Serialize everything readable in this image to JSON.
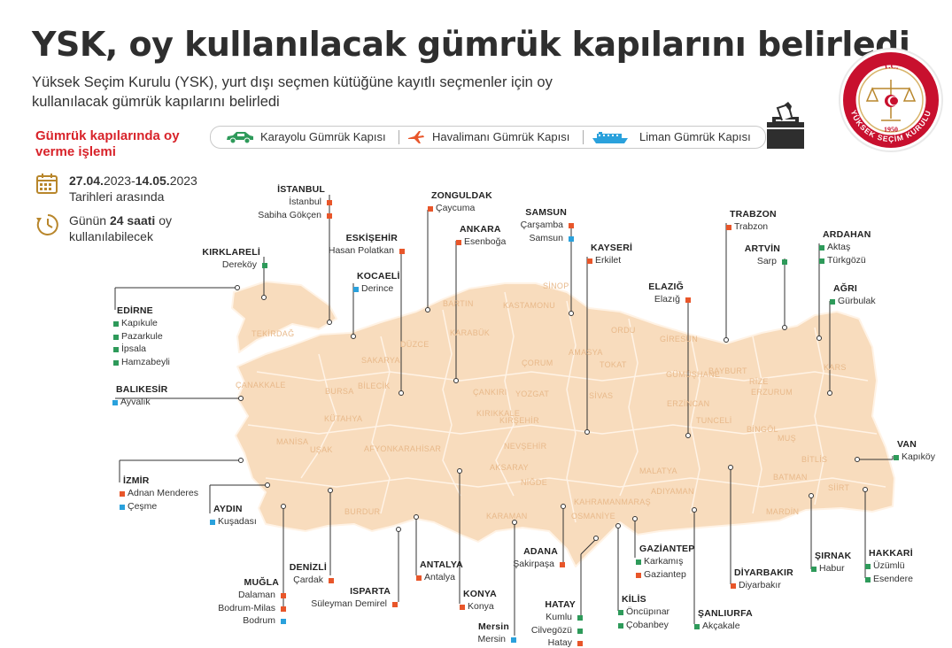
{
  "title": "YSK, oy kullanılacak gümrük kapılarını belirledi",
  "subtitle": "Yüksek Seçim Kurulu (YSK), yurt dışı seçmen kütüğüne kayıtlı seçmenler için oy kullanılacak gümrük kapılarını belirledi",
  "process_title": "Gümrük kapılarında oy verme işlemi",
  "dates": {
    "start": "27.04.",
    "start_year": "2023-",
    "end": "14.05.",
    "end_year": "2023",
    "suffix": "Tarihleri arasında"
  },
  "hours": {
    "prefix": "Günün ",
    "bold": "24 saati",
    "suffix": " oy kullanılabilecek"
  },
  "legend": {
    "land": "Karayolu Gümrük Kapısı",
    "air": "Havalimanı Gümrük Kapısı",
    "sea": "Liman Gümrük Kapısı"
  },
  "colors": {
    "land": "#2e9a5a",
    "air": "#e8562a",
    "sea": "#2aa1dc",
    "map": "#f8dcbd",
    "map_line": "#fff3e6",
    "accent": "#d8232a",
    "seal": "#c8102e"
  },
  "seal": {
    "top": "T.C.",
    "bottom": "YÜKSEK SEÇİM KURULU",
    "year": "1950"
  },
  "provinces_bg": [
    "TEKİRDAĞ",
    "KASTAMONU",
    "SİNOP",
    "BARTIN",
    "DÜZCE",
    "KARABÜK",
    "SAKARYA",
    "BURSA",
    "BİLECİK",
    "ÇANKIRI",
    "ÇORUM",
    "AMASYA",
    "TOKAT",
    "ORDU",
    "GİRESUN",
    "RİZE",
    "BAYBURT",
    "GÜMÜŞHANE",
    "ERZURUM",
    "KARS",
    "ERZİNCAN",
    "TUNCELİ",
    "BİNGÖL",
    "MUŞ",
    "BİTLİS",
    "SİVAS",
    "YOZGAT",
    "KIRIKKALE",
    "KIRŞEHİR",
    "NEVŞEHİR",
    "AKSARAY",
    "NİĞDE",
    "KAHRAMANMARAŞ",
    "MALATYA",
    "ADIYAMAN",
    "BATMAN",
    "SİİRT",
    "MARDİN",
    "OSMANİYE",
    "KARAMAN",
    "KÜTAHYA",
    "MANİSA",
    "UŞAK",
    "AFYONKARAHİSAR",
    "BURDUR",
    "ÇANAKKALE"
  ],
  "cities": [
    {
      "name": "İSTANBUL",
      "gates": [
        {
          "label": "İstanbul",
          "type": "air"
        },
        {
          "label": "Sabiha Gökçen",
          "type": "air"
        }
      ]
    },
    {
      "name": "KIRKLARELİ",
      "gates": [
        {
          "label": "Dereköy",
          "type": "land"
        }
      ]
    },
    {
      "name": "EDİRNE",
      "gates": [
        {
          "label": "Kapıkule",
          "type": "land"
        },
        {
          "label": "Pazarkule",
          "type": "land"
        },
        {
          "label": "İpsala",
          "type": "land"
        },
        {
          "label": "Hamzabeyli",
          "type": "land"
        }
      ]
    },
    {
      "name": "BALIKESİR",
      "gates": [
        {
          "label": "Ayvalık",
          "type": "sea"
        }
      ]
    },
    {
      "name": "İZMİR",
      "gates": [
        {
          "label": "Adnan Menderes",
          "type": "air"
        },
        {
          "label": "Çeşme",
          "type": "sea"
        }
      ]
    },
    {
      "name": "AYDIN",
      "gates": [
        {
          "label": "Kuşadası",
          "type": "sea"
        }
      ]
    },
    {
      "name": "MUĞLA",
      "gates": [
        {
          "label": "Dalaman",
          "type": "air"
        },
        {
          "label": "Bodrum-Milas",
          "type": "air"
        },
        {
          "label": "Bodrum",
          "type": "sea"
        }
      ]
    },
    {
      "name": "DENİZLİ",
      "gates": [
        {
          "label": "Çardak",
          "type": "air"
        }
      ]
    },
    {
      "name": "ISPARTA",
      "gates": [
        {
          "label": "Süleyman Demirel",
          "type": "air"
        }
      ]
    },
    {
      "name": "ESKİŞEHİR",
      "gates": [
        {
          "label": "Hasan Polatkan",
          "type": "air"
        }
      ]
    },
    {
      "name": "KOCAELİ",
      "gates": [
        {
          "label": "Derince",
          "type": "sea"
        }
      ]
    },
    {
      "name": "ZONGULDAK",
      "gates": [
        {
          "label": "Çaycuma",
          "type": "air"
        }
      ]
    },
    {
      "name": "ANKARA",
      "gates": [
        {
          "label": "Esenboğa",
          "type": "air"
        }
      ]
    },
    {
      "name": "ANTALYA",
      "gates": [
        {
          "label": "Antalya",
          "type": "air"
        }
      ]
    },
    {
      "name": "KONYA",
      "gates": [
        {
          "label": "Konya",
          "type": "air"
        }
      ]
    },
    {
      "name": "Mersin",
      "gates": [
        {
          "label": "Mersin",
          "type": "sea"
        }
      ]
    },
    {
      "name": "SAMSUN",
      "gates": [
        {
          "label": "Çarşamba",
          "type": "air"
        },
        {
          "label": "Samsun",
          "type": "sea"
        }
      ]
    },
    {
      "name": "KAYSERİ",
      "gates": [
        {
          "label": "Erkilet",
          "type": "air"
        }
      ]
    },
    {
      "name": "ADANA",
      "gates": [
        {
          "label": "Şakirpaşa",
          "type": "air"
        }
      ]
    },
    {
      "name": "HATAY",
      "gates": [
        {
          "label": "Kumlu",
          "type": "land"
        },
        {
          "label": "Cilvegözü",
          "type": "land"
        },
        {
          "label": "Hatay",
          "type": "air"
        }
      ]
    },
    {
      "name": "GAZİANTEP",
      "gates": [
        {
          "label": "Karkamış",
          "type": "land"
        },
        {
          "label": "Gaziantep",
          "type": "air"
        }
      ]
    },
    {
      "name": "KİLİS",
      "gates": [
        {
          "label": "Öncüpınar",
          "type": "land"
        },
        {
          "label": "Çobanbey",
          "type": "land"
        }
      ]
    },
    {
      "name": "ELAZIĞ",
      "gates": [
        {
          "label": "Elazığ",
          "type": "air"
        }
      ]
    },
    {
      "name": "TRABZON",
      "gates": [
        {
          "label": "Trabzon",
          "type": "air"
        }
      ]
    },
    {
      "name": "DİYARBAKIR",
      "gates": [
        {
          "label": "Diyarbakır",
          "type": "air"
        }
      ]
    },
    {
      "name": "ŞANLIURFA",
      "gates": [
        {
          "label": "Akçakale",
          "type": "land"
        }
      ]
    },
    {
      "name": "ARTVİN",
      "gates": [
        {
          "label": "Sarp",
          "type": "land"
        }
      ]
    },
    {
      "name": "ARDAHAN",
      "gates": [
        {
          "label": "Aktaş",
          "type": "land"
        },
        {
          "label": "Türkgözü",
          "type": "land"
        }
      ]
    },
    {
      "name": "AĞRI",
      "gates": [
        {
          "label": "Gürbulak",
          "type": "land"
        }
      ]
    },
    {
      "name": "VAN",
      "gates": [
        {
          "label": "Kapıköy",
          "type": "land"
        }
      ]
    },
    {
      "name": "ŞIRNAK",
      "gates": [
        {
          "label": "Habur",
          "type": "land"
        }
      ]
    },
    {
      "name": "HAKKARİ",
      "gates": [
        {
          "label": "Üzümlü",
          "type": "land"
        },
        {
          "label": "Esendere",
          "type": "land"
        }
      ]
    }
  ]
}
